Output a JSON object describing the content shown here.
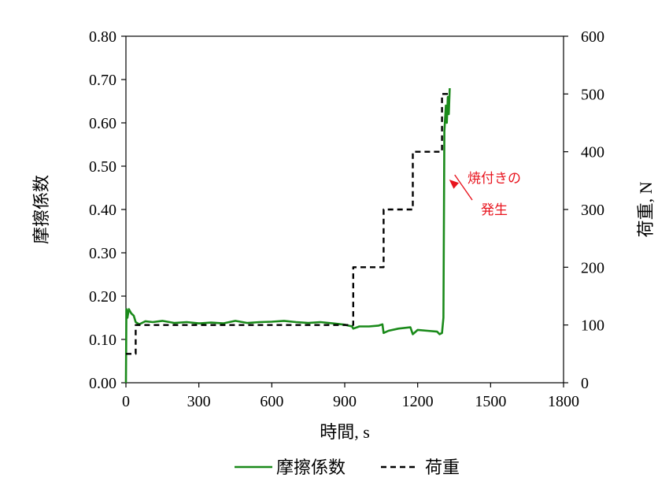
{
  "chart_data": {
    "type": "line",
    "title": "",
    "xlabel": "時間, s",
    "ylabel_left": "摩擦係数",
    "ylabel_right": "荷重, N",
    "xlim": [
      0,
      1800
    ],
    "ylim_left": [
      0,
      0.8
    ],
    "ylim_right": [
      0,
      600
    ],
    "x_ticks": [
      "0",
      "300",
      "600",
      "900",
      "1200",
      "1500",
      "1800"
    ],
    "y_left_ticks": [
      "0.00",
      "0.10",
      "0.20",
      "0.30",
      "0.40",
      "0.50",
      "0.60",
      "0.70",
      "0.80"
    ],
    "y_right_ticks": [
      "0",
      "100",
      "200",
      "300",
      "400",
      "500",
      "600"
    ],
    "grid": false,
    "legend_position": "bottom",
    "series": [
      {
        "name": "摩擦係数",
        "axis": "left",
        "color": "#1a8a1a",
        "style": "solid",
        "points": [
          [
            0,
            0.0
          ],
          [
            2,
            0.17
          ],
          [
            6,
            0.15
          ],
          [
            12,
            0.17
          ],
          [
            22,
            0.16
          ],
          [
            32,
            0.155
          ],
          [
            40,
            0.14
          ],
          [
            55,
            0.135
          ],
          [
            80,
            0.142
          ],
          [
            110,
            0.14
          ],
          [
            150,
            0.143
          ],
          [
            200,
            0.138
          ],
          [
            250,
            0.14
          ],
          [
            300,
            0.137
          ],
          [
            350,
            0.139
          ],
          [
            400,
            0.137
          ],
          [
            450,
            0.143
          ],
          [
            500,
            0.138
          ],
          [
            550,
            0.14
          ],
          [
            600,
            0.141
          ],
          [
            650,
            0.143
          ],
          [
            700,
            0.14
          ],
          [
            750,
            0.138
          ],
          [
            800,
            0.14
          ],
          [
            850,
            0.137
          ],
          [
            900,
            0.134
          ],
          [
            930,
            0.13
          ],
          [
            935,
            0.125
          ],
          [
            960,
            0.13
          ],
          [
            1000,
            0.13
          ],
          [
            1040,
            0.132
          ],
          [
            1055,
            0.135
          ],
          [
            1060,
            0.115
          ],
          [
            1080,
            0.12
          ],
          [
            1120,
            0.125
          ],
          [
            1170,
            0.128
          ],
          [
            1180,
            0.112
          ],
          [
            1200,
            0.122
          ],
          [
            1240,
            0.12
          ],
          [
            1280,
            0.118
          ],
          [
            1290,
            0.112
          ],
          [
            1300,
            0.115
          ],
          [
            1306,
            0.15
          ],
          [
            1310,
            0.58
          ],
          [
            1316,
            0.64
          ],
          [
            1320,
            0.6
          ],
          [
            1324,
            0.66
          ],
          [
            1328,
            0.62
          ],
          [
            1332,
            0.68
          ]
        ]
      },
      {
        "name": "荷重",
        "axis": "right",
        "color": "#000000",
        "style": "dashed",
        "points": [
          [
            0,
            50
          ],
          [
            40,
            50
          ],
          [
            40,
            100
          ],
          [
            935,
            100
          ],
          [
            935,
            200
          ],
          [
            1060,
            200
          ],
          [
            1060,
            300
          ],
          [
            1180,
            300
          ],
          [
            1180,
            400
          ],
          [
            1300,
            400
          ],
          [
            1300,
            500
          ],
          [
            1330,
            500
          ]
        ]
      }
    ],
    "annotations": [
      {
        "text_lines": [
          "焼付きの",
          "発生"
        ],
        "color": "#e8141e",
        "arrow_target": [
          1320,
          0.48
        ]
      }
    ]
  }
}
